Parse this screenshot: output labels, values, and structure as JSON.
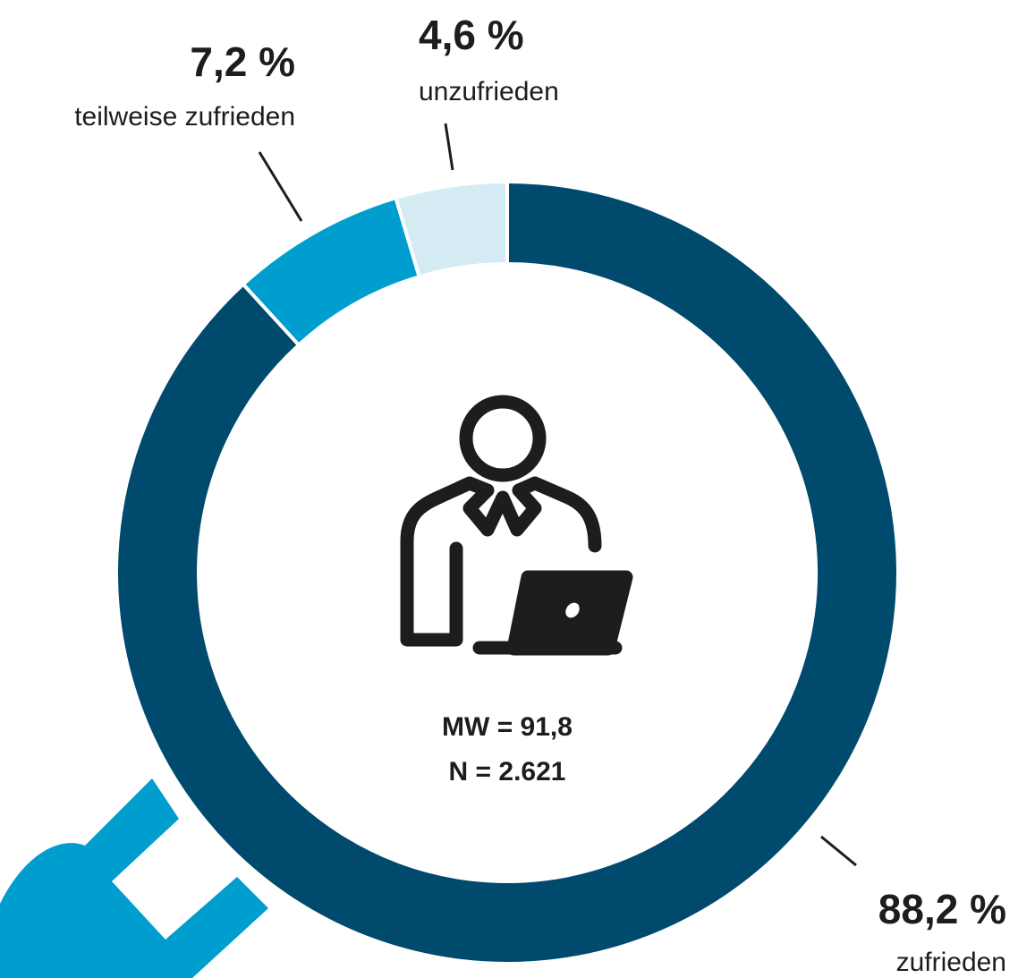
{
  "chart_data": {
    "type": "pie",
    "donut": true,
    "categories": [
      "zufrieden",
      "teilweise zufrieden",
      "unzufrieden"
    ],
    "values": [
      88.2,
      7.2,
      4.6
    ],
    "value_labels": [
      "88,2 %",
      "7,2 %",
      "4,6 %"
    ],
    "colors": [
      "#004a6e",
      "#009ecf",
      "#d4ebf4"
    ],
    "annotations": [
      "MW = 91,8",
      "N = 2.621"
    ]
  }
}
